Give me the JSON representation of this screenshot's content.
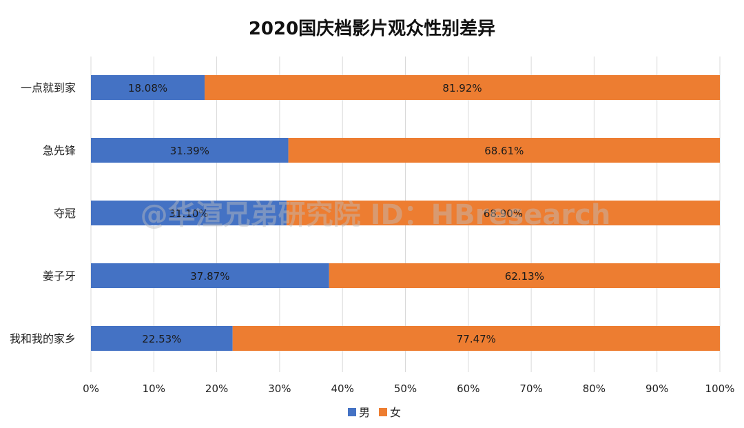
{
  "chart_data": {
    "type": "bar",
    "orientation": "horizontal",
    "stacked": true,
    "title": "2020国庆档影片观众性别差异",
    "categories": [
      "一点就到家",
      "急先锋",
      "夺冠",
      "姜子牙",
      "我和我的家乡"
    ],
    "series": [
      {
        "name": "男",
        "color": "#4472C4",
        "values": [
          18.08,
          31.39,
          31.1,
          37.87,
          22.53
        ],
        "labels": [
          "18.08%",
          "31.39%",
          "31.10%",
          "37.87%",
          "22.53%"
        ]
      },
      {
        "name": "女",
        "color": "#ED7D31",
        "values": [
          81.92,
          68.61,
          68.9,
          62.13,
          77.47
        ],
        "labels": [
          "81.92%",
          "68.61%",
          "68.90%",
          "62.13%",
          "77.47%"
        ]
      }
    ],
    "xlim": [
      0,
      100
    ],
    "x_ticks": [
      "0%",
      "10%",
      "20%",
      "30%",
      "40%",
      "50%",
      "60%",
      "70%",
      "80%",
      "90%",
      "100%"
    ],
    "grid": true,
    "legend_position": "bottom-center",
    "watermark": "@华渲兄弟研究院 ID：HBresearch"
  }
}
